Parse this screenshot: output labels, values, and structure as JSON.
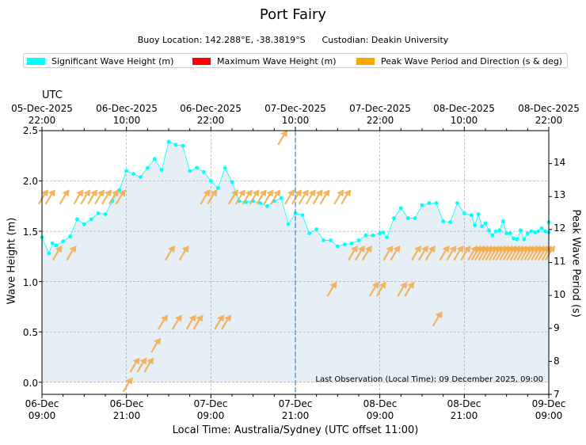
{
  "chart_data": {
    "type": "line",
    "title": "Port Fairy",
    "subtitle": {
      "buoy_location": "Buoy Location: 142.288°E, -38.3819°S",
      "custodian": "Custodian: Deakin University"
    },
    "legend": [
      {
        "label": "Significant Wave Height (m)",
        "color": "#00ffff"
      },
      {
        "label": "Maximum Wave Height (m)",
        "color": "#ff0000"
      },
      {
        "label": "Peak Wave Period and Direction (s & deg)",
        "color": "#ffa500"
      }
    ],
    "top_axis_title": "UTC",
    "top_ticks": [
      {
        "pos": 0,
        "date": "05-Dec-2025",
        "time": "22:00"
      },
      {
        "pos": 12,
        "date": "06-Dec-2025",
        "time": "10:00"
      },
      {
        "pos": 24,
        "date": "06-Dec-2025",
        "time": "22:00"
      },
      {
        "pos": 36,
        "date": "07-Dec-2025",
        "time": "10:00"
      },
      {
        "pos": 48,
        "date": "07-Dec-2025",
        "time": "22:00"
      },
      {
        "pos": 60,
        "date": "08-Dec-2025",
        "time": "10:00"
      },
      {
        "pos": 72,
        "date": "08-Dec-2025",
        "time": "22:00"
      }
    ],
    "bottom_ticks": [
      {
        "pos": 0,
        "date": "06-Dec",
        "time": "09:00"
      },
      {
        "pos": 12,
        "date": "06-Dec",
        "time": "21:00"
      },
      {
        "pos": 24,
        "date": "07-Dec",
        "time": "09:00"
      },
      {
        "pos": 36,
        "date": "07-Dec",
        "time": "21:00"
      },
      {
        "pos": 48,
        "date": "08-Dec",
        "time": "09:00"
      },
      {
        "pos": 60,
        "date": "08-Dec",
        "time": "21:00"
      },
      {
        "pos": 72,
        "date": "09-Dec",
        "time": "09:00"
      }
    ],
    "xlabel": "Local Time: Australia/Sydney (UTC offset 11:00)",
    "ylabel": "Wave Height (m)",
    "y2label": "Peak Wave Period (s)",
    "xlim": [
      0,
      72
    ],
    "ylim": [
      -0.12,
      2.5
    ],
    "y2lim": [
      7,
      15
    ],
    "yticks": [
      "0.0",
      "0.5",
      "1.0",
      "1.5",
      "2.0",
      "2.5"
    ],
    "y2ticks": [
      "7",
      "8",
      "9",
      "10",
      "11",
      "12",
      "13",
      "14"
    ],
    "annotation": "Last Observation (Local Time): 09 December 2025, 09:00",
    "marker_line_hours": 36,
    "significant_wave_height": [
      [
        0,
        1.44
      ],
      [
        1,
        1.28
      ],
      [
        1.5,
        1.38
      ],
      [
        2,
        1.36
      ],
      [
        3,
        1.4
      ],
      [
        4,
        1.45
      ],
      [
        5,
        1.62
      ],
      [
        6,
        1.57
      ],
      [
        7,
        1.62
      ],
      [
        8,
        1.68
      ],
      [
        9,
        1.67
      ],
      [
        10,
        1.8
      ],
      [
        11,
        1.91
      ],
      [
        12,
        2.1
      ],
      [
        13,
        2.07
      ],
      [
        14,
        2.04
      ],
      [
        15,
        2.13
      ],
      [
        16,
        2.22
      ],
      [
        17,
        2.11
      ],
      [
        18,
        2.39
      ],
      [
        19,
        2.36
      ],
      [
        20,
        2.35
      ],
      [
        21,
        2.1
      ],
      [
        22,
        2.13
      ],
      [
        23,
        2.09
      ],
      [
        24,
        2.0
      ],
      [
        25,
        1.93
      ],
      [
        26,
        2.13
      ],
      [
        27,
        1.99
      ],
      [
        28,
        1.8
      ],
      [
        29,
        1.79
      ],
      [
        30,
        1.8
      ],
      [
        31,
        1.78
      ],
      [
        32,
        1.75
      ],
      [
        33,
        1.8
      ],
      [
        34,
        1.83
      ],
      [
        35,
        1.57
      ],
      [
        36,
        1.68
      ],
      [
        37,
        1.66
      ],
      [
        38,
        1.48
      ],
      [
        39,
        1.52
      ],
      [
        40,
        1.41
      ],
      [
        41,
        1.41
      ],
      [
        42,
        1.35
      ],
      [
        43,
        1.37
      ],
      [
        44,
        1.38
      ],
      [
        45,
        1.41
      ],
      [
        46,
        1.46
      ],
      [
        47,
        1.46
      ],
      [
        48,
        1.48
      ],
      [
        48.5,
        1.49
      ],
      [
        49,
        1.44
      ],
      [
        50,
        1.63
      ],
      [
        51,
        1.73
      ],
      [
        52,
        1.63
      ],
      [
        53,
        1.63
      ],
      [
        54,
        1.76
      ],
      [
        55,
        1.78
      ],
      [
        56,
        1.78
      ],
      [
        57,
        1.6
      ],
      [
        58,
        1.59
      ],
      [
        59,
        1.78
      ],
      [
        60,
        1.68
      ],
      [
        61,
        1.66
      ],
      [
        61.5,
        1.56
      ],
      [
        62,
        1.67
      ],
      [
        62.5,
        1.55
      ],
      [
        63,
        1.58
      ],
      [
        63.5,
        1.51
      ],
      [
        64,
        1.46
      ],
      [
        64.5,
        1.5
      ],
      [
        65,
        1.51
      ],
      [
        65.5,
        1.6
      ],
      [
        66,
        1.48
      ],
      [
        66.5,
        1.48
      ],
      [
        67,
        1.43
      ],
      [
        67.5,
        1.42
      ],
      [
        68,
        1.51
      ],
      [
        68.5,
        1.42
      ],
      [
        69,
        1.48
      ],
      [
        69.5,
        1.5
      ],
      [
        70,
        1.49
      ],
      [
        70.5,
        1.5
      ],
      [
        71,
        1.53
      ],
      [
        71.5,
        1.5
      ],
      [
        72,
        1.49
      ],
      [
        72.5,
        1.59
      ]
    ],
    "peak_period_direction": [
      [
        0,
        13.0
      ],
      [
        1,
        13.0
      ],
      [
        2,
        11.3
      ],
      [
        3,
        13.0
      ],
      [
        4,
        11.3
      ],
      [
        5,
        13.0
      ],
      [
        6,
        13.0
      ],
      [
        7,
        13.0
      ],
      [
        8,
        13.0
      ],
      [
        9,
        13.0
      ],
      [
        10,
        13.0
      ],
      [
        11,
        13.0
      ],
      [
        12,
        7.3
      ],
      [
        13,
        7.9
      ],
      [
        14,
        7.9
      ],
      [
        15,
        7.9
      ],
      [
        16,
        8.5
      ],
      [
        17,
        9.2
      ],
      [
        18,
        11.3
      ],
      [
        19,
        9.2
      ],
      [
        20,
        11.3
      ],
      [
        21,
        9.2
      ],
      [
        22,
        9.2
      ],
      [
        23,
        13.0
      ],
      [
        24,
        13.0
      ],
      [
        25,
        9.2
      ],
      [
        26,
        9.2
      ],
      [
        27,
        13.0
      ],
      [
        28,
        13.0
      ],
      [
        29,
        13.0
      ],
      [
        30,
        13.0
      ],
      [
        31,
        13.0
      ],
      [
        32,
        13.0
      ],
      [
        33,
        13.0
      ],
      [
        34,
        14.8
      ],
      [
        35,
        13.0
      ],
      [
        36,
        13.0
      ],
      [
        37,
        13.0
      ],
      [
        38,
        13.0
      ],
      [
        39,
        13.0
      ],
      [
        40,
        13.0
      ],
      [
        41,
        10.2
      ],
      [
        42,
        13.0
      ],
      [
        43,
        13.0
      ],
      [
        44,
        11.3
      ],
      [
        45,
        11.3
      ],
      [
        46,
        11.3
      ],
      [
        47,
        10.2
      ],
      [
        48,
        10.2
      ],
      [
        49,
        11.3
      ],
      [
        50,
        11.3
      ],
      [
        51,
        10.2
      ],
      [
        52,
        10.2
      ],
      [
        53,
        11.3
      ],
      [
        54,
        11.3
      ],
      [
        55,
        11.3
      ],
      [
        56,
        9.3
      ],
      [
        57,
        11.3
      ],
      [
        58,
        11.3
      ],
      [
        59,
        11.3
      ],
      [
        60,
        11.3
      ],
      [
        61,
        11.3
      ],
      [
        61.5,
        11.3
      ],
      [
        62,
        11.3
      ],
      [
        62.5,
        11.3
      ],
      [
        63,
        11.3
      ],
      [
        63.5,
        11.3
      ],
      [
        64,
        11.3
      ],
      [
        64.5,
        11.3
      ],
      [
        65,
        11.3
      ],
      [
        65.5,
        11.3
      ],
      [
        66,
        11.3
      ],
      [
        66.5,
        11.3
      ],
      [
        67,
        11.3
      ],
      [
        67.5,
        11.3
      ],
      [
        68,
        11.3
      ],
      [
        68.5,
        11.3
      ],
      [
        69,
        11.3
      ],
      [
        69.5,
        11.3
      ],
      [
        70,
        11.3
      ],
      [
        70.5,
        11.3
      ],
      [
        71,
        11.3
      ],
      [
        71.5,
        11.3
      ],
      [
        72,
        11.3
      ]
    ]
  },
  "colors": {
    "hs_line": "#00ffff",
    "fill": "#e6eef6",
    "arrow": "#f4a742",
    "marker_line": "#4a90c8",
    "grid": "#a9a9a9"
  }
}
